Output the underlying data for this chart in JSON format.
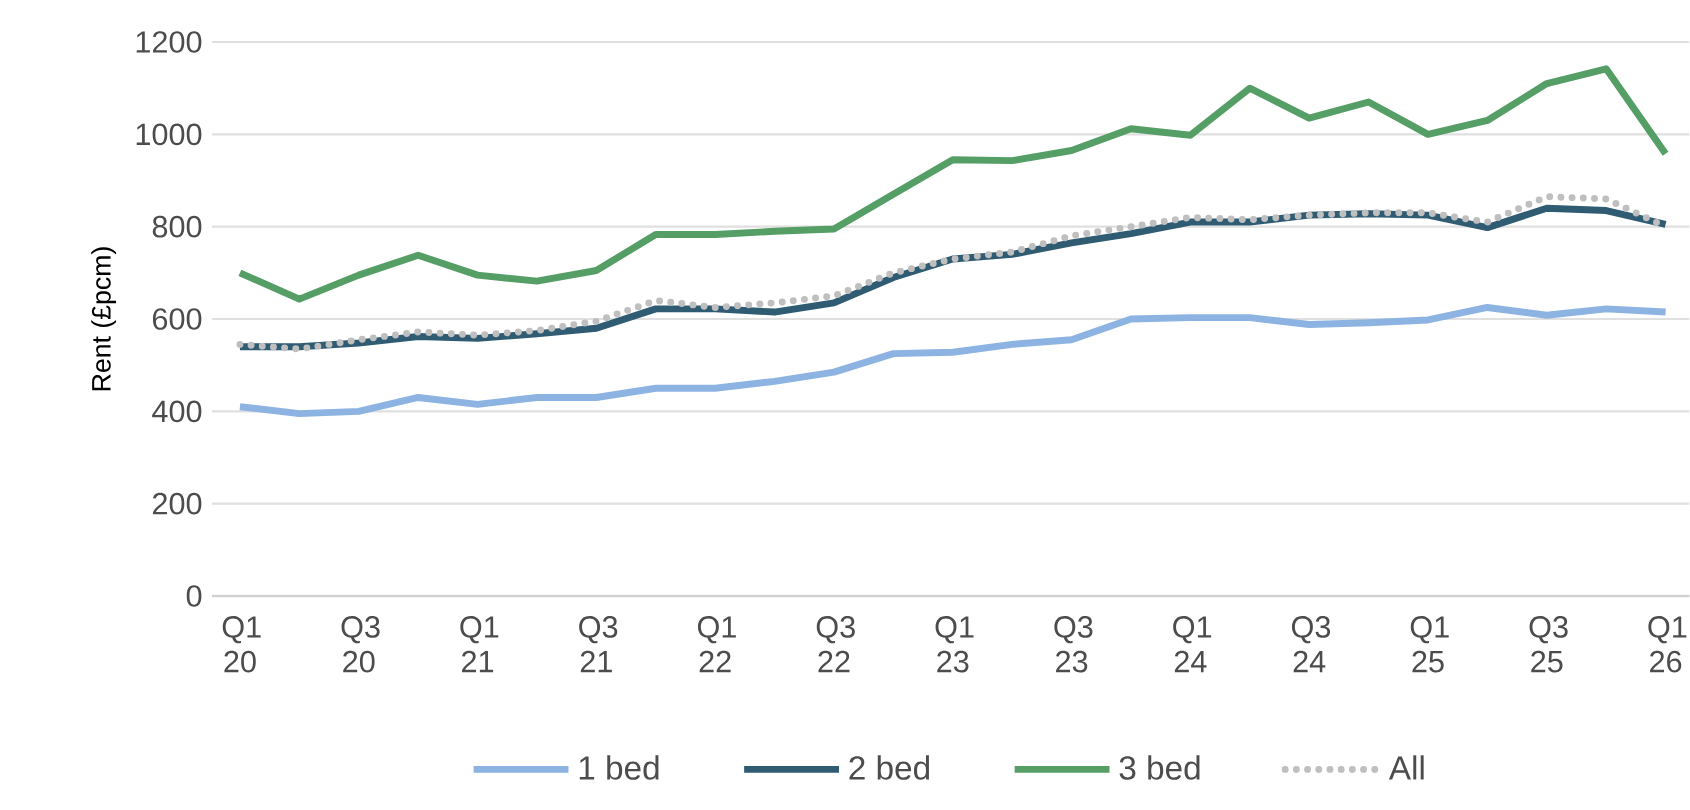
{
  "chart_data": {
    "type": "line",
    "ylabel": "Rent (£pcm)",
    "categories": [
      "Q1 20",
      null,
      "Q3 20",
      null,
      "Q1 21",
      null,
      "Q3 21",
      null,
      "Q1 22",
      null,
      "Q3 22",
      null,
      "Q1 23",
      null,
      "Q3 23",
      null,
      "Q1 24",
      null,
      "Q3 24",
      null,
      "Q1 25",
      null,
      "Q3 25",
      null,
      "Q1 26"
    ],
    "series": [
      {
        "name": "1 bed",
        "color": "#8db3e2",
        "line_style": "solid",
        "values": [
          410,
          395,
          400,
          430,
          415,
          430,
          430,
          450,
          450,
          465,
          485,
          525,
          528,
          545,
          555,
          600,
          603,
          603,
          588,
          592,
          598,
          625,
          608,
          622,
          615
        ]
      },
      {
        "name": "2 bed",
        "color": "#2f5b73",
        "line_style": "solid",
        "values": [
          540,
          540,
          548,
          562,
          558,
          568,
          580,
          622,
          622,
          615,
          635,
          690,
          730,
          740,
          765,
          785,
          810,
          810,
          825,
          828,
          825,
          798,
          840,
          835,
          805
        ]
      },
      {
        "name": "3 bed",
        "color": "#559e66",
        "line_style": "solid",
        "values": [
          700,
          643,
          695,
          738,
          695,
          682,
          705,
          783,
          783,
          790,
          795,
          870,
          945,
          943,
          965,
          1012,
          998,
          1100,
          1035,
          1070,
          1000,
          1030,
          1110,
          1142,
          958
        ]
      },
      {
        "name": "All",
        "color": "#bfbfbf",
        "line_style": "dotted",
        "values": [
          545,
          535,
          555,
          572,
          565,
          575,
          595,
          640,
          625,
          635,
          650,
          700,
          730,
          745,
          780,
          800,
          820,
          815,
          825,
          830,
          830,
          810,
          865,
          860,
          800
        ]
      }
    ],
    "ylim": [
      0,
      1200
    ],
    "yticks": [
      0,
      200,
      400,
      600,
      800,
      1000,
      1200
    ],
    "grid": "y",
    "legend": "bottom",
    "marker": "none"
  }
}
